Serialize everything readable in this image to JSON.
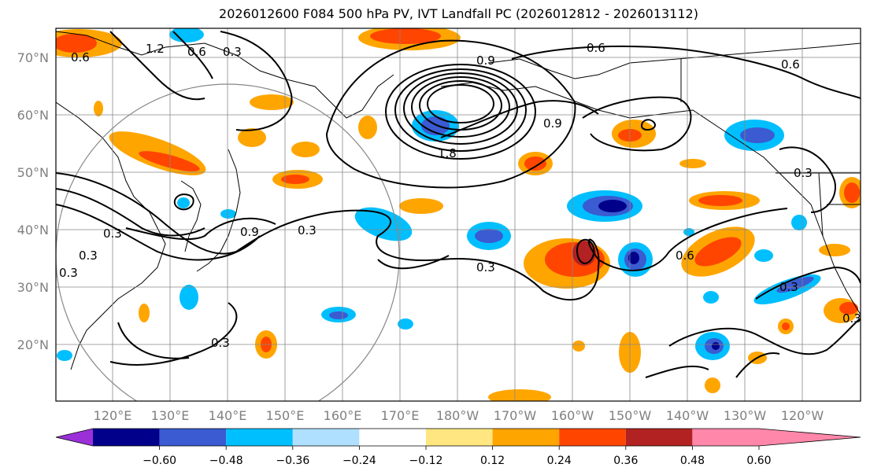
{
  "title": "2026012600 F084 500 hPa PV, IVT Landfall PC (2026012812 - 2026013112)",
  "lat_labels": [
    "70°N",
    "60°N",
    "50°N",
    "40°N",
    "30°N",
    "20°N"
  ],
  "lon_labels": [
    "120°E",
    "130°E",
    "140°E",
    "150°E",
    "160°E",
    "170°E",
    "180°W",
    "170°W",
    "160°W",
    "150°W",
    "140°W",
    "130°W",
    "120°W"
  ],
  "colorbar": {
    "ticks": [
      "−0.60",
      "−0.48",
      "−0.36",
      "−0.24",
      "−0.12",
      "0.12",
      "0.24",
      "0.36",
      "0.48",
      "0.60"
    ],
    "colors": [
      "#9b30d9",
      "#00008b",
      "#3a5bd1",
      "#00bfff",
      "#b0e0ff",
      "#ffffff",
      "#ffe680",
      "#ffa500",
      "#ff4500",
      "#b22222",
      "#ff88aa"
    ]
  },
  "contour_labels": [
    "1.2",
    "0.6",
    "0.3",
    "0.9",
    "1.8",
    "0.9",
    "0.3",
    "0.6",
    "0.6",
    "0.3",
    "0.3",
    "0.9",
    "0.3",
    "0.3",
    "0.6",
    "0.3",
    "0.3",
    "0.6",
    "0.3",
    "0.3"
  ]
}
